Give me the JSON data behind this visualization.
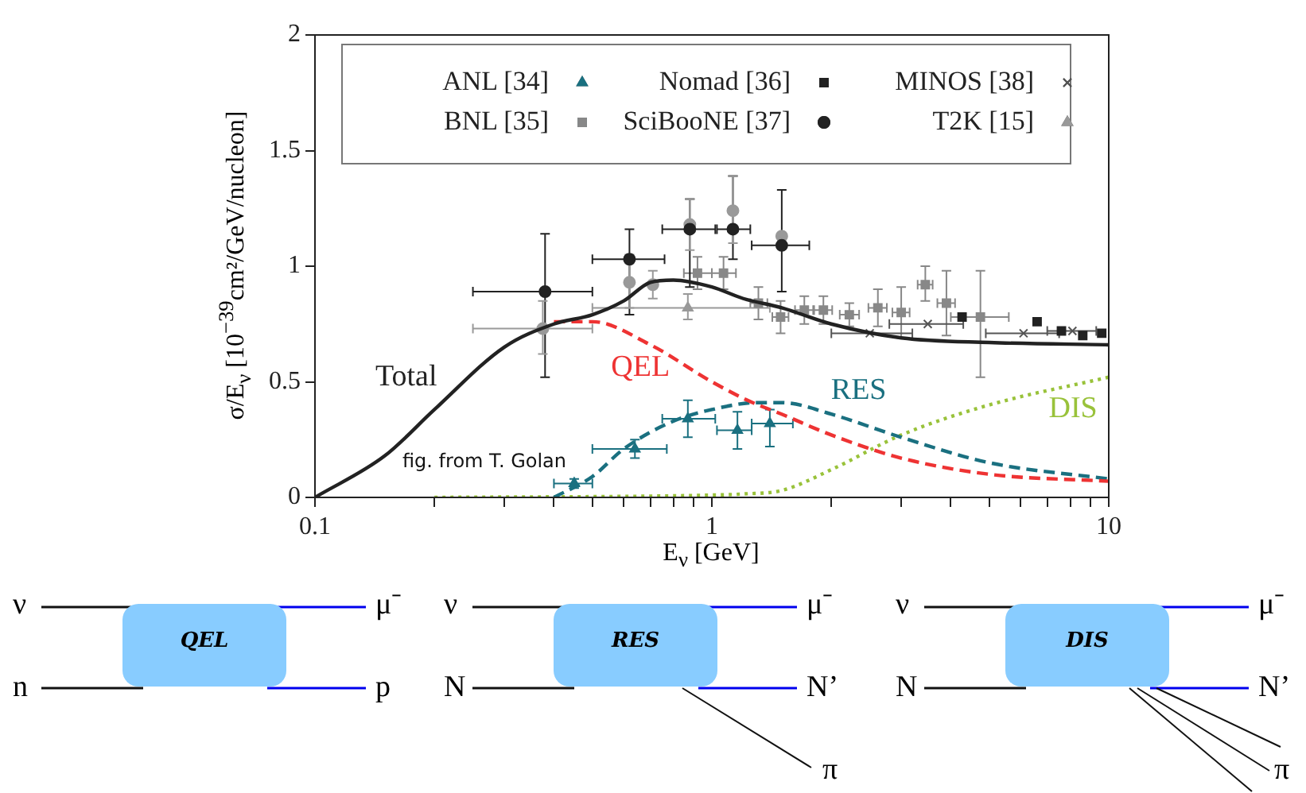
{
  "chart_data": [
    {
      "type": "line",
      "xlabel": "E$_{ν}$ [GeV]",
      "ylabel": "σ/E$_{ν}$ [10$^{−39}$cm²/GeV/nucleon]",
      "log": "x",
      "grid": false,
      "legend": "top",
      "xlim": [
        0.1,
        10
      ],
      "ylim": [
        0,
        2
      ],
      "xticks": [
        0.1,
        {
          "value": 0.2,
          "label": null
        },
        {
          "value": 0.3,
          "label": null
        },
        {
          "value": 0.4,
          "label": null
        },
        {
          "value": 0.5,
          "label": null
        },
        {
          "value": 0.6,
          "label": null
        },
        {
          "value": 0.7,
          "label": null
        },
        {
          "value": 0.8,
          "label": null
        },
        {
          "value": 0.9,
          "label": null
        },
        1,
        {
          "value": 2,
          "label": null
        },
        {
          "value": 3,
          "label": null
        },
        {
          "value": 4,
          "label": null
        },
        {
          "value": 5,
          "label": null
        },
        {
          "value": 6,
          "label": null
        },
        {
          "value": 7,
          "label": null
        },
        {
          "value": 8,
          "label": null
        },
        {
          "value": 9,
          "label": null
        },
        10
      ],
      "yticks": [
        0,
        0.5,
        1,
        1.5,
        2
      ],
      "annotations": [
        "fig. from T. Golan"
      ],
      "series": [
        {
          "name": "Total",
          "type": "line",
          "line_style": "solid",
          "color": "#222222",
          "x": [
            0.1,
            0.15,
            0.2,
            0.3,
            0.4,
            0.5,
            0.6,
            0.7,
            0.8,
            1,
            1.2,
            1.5,
            2,
            3,
            5,
            10
          ],
          "values": [
            0,
            0.18,
            0.38,
            0.65,
            0.75,
            0.79,
            0.85,
            0.93,
            0.94,
            0.91,
            0.86,
            0.82,
            0.75,
            0.69,
            0.67,
            0.66
          ]
        },
        {
          "name": "QEL",
          "type": "line",
          "line_style": "dashed",
          "color": "#ee3333",
          "x": [
            0.4,
            0.5,
            0.7,
            1,
            1.23,
            1.5,
            2,
            3,
            5,
            10
          ],
          "values": [
            0.76,
            0.76,
            0.66,
            0.5,
            0.42,
            0.36,
            0.27,
            0.17,
            0.1,
            0.07
          ]
        },
        {
          "name": "RES",
          "type": "line",
          "line_style": "dashed",
          "color": "#1a7080",
          "x": [
            0.4,
            0.5,
            0.6,
            0.8,
            1,
            1.3,
            1.5,
            2,
            3,
            5,
            10
          ],
          "values": [
            0,
            0.09,
            0.21,
            0.33,
            0.38,
            0.41,
            0.41,
            0.36,
            0.26,
            0.15,
            0.08
          ]
        },
        {
          "name": "DIS",
          "type": "line",
          "line_style": "dotted",
          "color": "#99c23a",
          "x": [
            0.2,
            1,
            1.2,
            1.5,
            2,
            3,
            5,
            10
          ],
          "values": [
            0,
            0.01,
            0.015,
            0.03,
            0.12,
            0.27,
            0.4,
            0.52
          ]
        },
        {
          "name": "ANL [34]",
          "type": "scatter",
          "marker": "triangle",
          "color": "#1a7080",
          "x": [
            0.45,
            0.64,
            0.87,
            1.16,
            1.4
          ],
          "values": [
            0.06,
            0.21,
            0.34,
            0.29,
            0.32
          ],
          "errors": [
            [
              0.04,
              0.08
            ],
            [
              0.17,
              0.25
            ],
            [
              0.26,
              0.42
            ],
            [
              0.21,
              0.37
            ],
            [
              0.22,
              0.38
            ]
          ],
          "xerrors": [
            [
              0.4,
              0.5
            ],
            [
              0.5,
              0.77
            ],
            [
              0.75,
              1.02
            ],
            [
              1.03,
              1.26
            ],
            [
              1.26,
              1.6
            ]
          ]
        },
        {
          "name": "BNL [35]",
          "type": "scatter",
          "marker": "square",
          "color": "#888888",
          "x": [
            0.92,
            1.07,
            1.31,
            1.49,
            1.71,
            1.91,
            2.22,
            2.62,
            3,
            3.45,
            3.9,
            4.75
          ],
          "values": [
            0.97,
            0.97,
            0.84,
            0.78,
            0.81,
            0.81,
            0.79,
            0.82,
            0.8,
            0.92,
            0.84,
            0.78
          ],
          "errors": [
            [
              0.9,
              1.04
            ],
            [
              0.9,
              1.04
            ],
            [
              0.77,
              0.91
            ],
            [
              0.71,
              0.85
            ],
            [
              0.75,
              0.87
            ],
            [
              0.75,
              0.87
            ],
            [
              0.74,
              0.84
            ],
            [
              0.74,
              0.9
            ],
            [
              0.69,
              0.91
            ],
            [
              0.85,
              1
            ],
            [
              0.7,
              0.98
            ],
            [
              0.52,
              0.98
            ]
          ],
          "xerrors": [
            [
              0.85,
              1
            ],
            [
              1,
              1.15
            ],
            [
              1.25,
              1.38
            ],
            [
              1.42,
              1.56
            ],
            [
              1.62,
              1.8
            ],
            [
              1.81,
              2.01
            ],
            [
              2.1,
              2.35
            ],
            [
              2.48,
              2.76
            ],
            [
              2.85,
              3.15
            ],
            [
              3.3,
              3.6
            ],
            [
              3.7,
              4.1
            ],
            [
              4,
              5.6
            ]
          ]
        },
        {
          "name": "Nomad [36]",
          "type": "scatter",
          "marker": "square",
          "color": "#222222",
          "x": [
            4.27,
            6.6,
            7.6,
            8.6,
            9.6
          ],
          "values": [
            0.78,
            0.76,
            0.72,
            0.7,
            0.71
          ]
        },
        {
          "name": "SciBooNE [37]",
          "type": "scatter",
          "marker": "circle",
          "color": "#222222",
          "x": [
            0.38,
            0.62,
            0.88,
            1.13,
            1.5
          ],
          "values": [
            0.89,
            1.03,
            1.16,
            1.16,
            1.09
          ],
          "errors": [
            [
              0.52,
              1.14
            ],
            [
              0.79,
              1.16
            ],
            [
              0.91,
              1.29
            ],
            [
              1.03,
              1.39
            ],
            [
              0.89,
              1.33
            ]
          ],
          "xerrors": [
            [
              0.25,
              0.5
            ],
            [
              0.5,
              0.76
            ],
            [
              0.75,
              1.02
            ],
            [
              1.03,
              1.25
            ],
            [
              1.26,
              1.76
            ]
          ]
        },
        {
          "name": "MINOS [38]",
          "type": "scatter",
          "marker": "cross",
          "color": "#555555",
          "x": [
            2.5,
            3.5,
            6.1,
            8.1
          ],
          "values": [
            0.71,
            0.75,
            0.71,
            0.72
          ],
          "xerrors": [
            [
              2,
              3.2
            ],
            [
              2.8,
              4.3
            ],
            [
              4.9,
              7.5
            ],
            [
              7,
              9.3
            ]
          ]
        },
        {
          "name": "T2K [15]",
          "type": "scatter",
          "marker": "triangle",
          "color": "#999999",
          "x": [
            0.87
          ],
          "values": [
            0.82
          ],
          "errors": [
            [
              0.77,
              0.88
            ]
          ],
          "xerrors": [
            [
              0.5,
              1.4
            ]
          ]
        },
        {
          "type": "scatter",
          "marker": "circle",
          "color": "#999999",
          "x": [
            0.375,
            0.62,
            0.71,
            0.88,
            1.13,
            1.5
          ],
          "values": [
            0.73,
            0.93,
            0.92,
            1.18,
            1.24,
            1.13
          ],
          "errors": [
            [
              0.62,
              0.85
            ],
            [
              0.82,
              1.05
            ],
            [
              0.86,
              0.98
            ],
            [
              1.07,
              1.29
            ],
            [
              1.1,
              1.39
            ],
            null
          ],
          "xerrors": [
            [
              0.25,
              0.5
            ],
            null,
            null,
            null,
            null,
            null
          ]
        }
      ]
    },
    {
      "type": "other",
      "annotations": [
        "ν",
        "μ⁻",
        "QEL",
        "n",
        "p"
      ]
    },
    {
      "type": "other",
      "annotations": [
        "ν",
        "μ⁻",
        "RES",
        "N",
        "N’",
        "π"
      ]
    },
    {
      "type": "other",
      "annotations": [
        "ν",
        "μ⁻",
        "DIS",
        "N",
        "N’",
        "π"
      ]
    }
  ]
}
